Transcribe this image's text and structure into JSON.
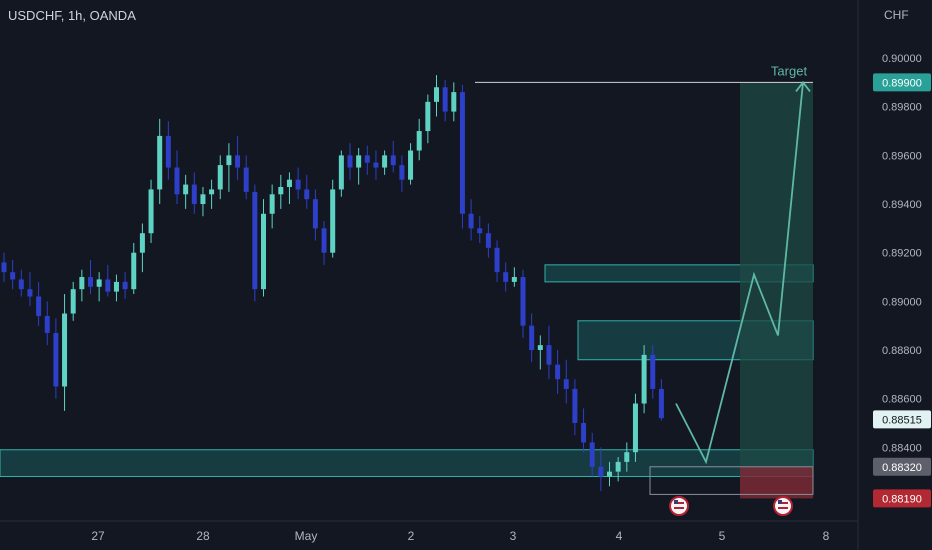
{
  "symbol_title": "USDCHF, 1h, OANDA",
  "currency": "CHF",
  "colors": {
    "background": "#131722",
    "up_candle": "#5fd3c3",
    "down_candle": "#2e3fc9",
    "zone_fill": "#1b6b6b",
    "zone_border": "#2fb3a9",
    "projection": "#5fb8a5",
    "target_box": "#1d4a44",
    "stop_box": "#7a2a35",
    "target_line": "#d1d4dc"
  },
  "chart_data": {
    "type": "candlestick",
    "x_tick_labels": [
      "27",
      "28",
      "May",
      "2",
      "3",
      "4",
      "5",
      "8"
    ],
    "y_tick_labels": [
      "0.90000",
      "0.89800",
      "0.89600",
      "0.89400",
      "0.89200",
      "0.89000",
      "0.88800",
      "0.88600",
      "0.88400"
    ],
    "ylim": [
      0.8813,
      0.9014
    ],
    "price_tags": [
      {
        "label": "0.89900",
        "value": 0.899,
        "kind": "target"
      },
      {
        "label": "0.88515",
        "value": 0.88515,
        "kind": "current"
      },
      {
        "label": "0.88320",
        "value": 0.8832,
        "kind": "entry"
      },
      {
        "label": "0.88190",
        "value": 0.8819,
        "kind": "stop"
      }
    ],
    "target": {
      "label": "Target",
      "value": 0.899
    },
    "zones": [
      {
        "from": 0.8828,
        "to": 0.8839
      },
      {
        "from": 0.8876,
        "to": 0.8892
      },
      {
        "from": 0.8908,
        "to": 0.8915
      }
    ],
    "trade_box": {
      "entry": 0.8832,
      "target": 0.899,
      "stop": 0.8819
    },
    "projection_path": [
      0.8858,
      0.8834,
      0.8911,
      0.8886,
      0.899
    ],
    "ohlc": [
      [
        0.8916,
        0.892,
        0.8908,
        0.8912
      ],
      [
        0.8912,
        0.8917,
        0.8905,
        0.8909
      ],
      [
        0.8909,
        0.8913,
        0.8902,
        0.8905
      ],
      [
        0.8905,
        0.8912,
        0.8898,
        0.8902
      ],
      [
        0.8902,
        0.8908,
        0.889,
        0.8894
      ],
      [
        0.8894,
        0.89,
        0.8882,
        0.8887
      ],
      [
        0.8887,
        0.8893,
        0.886,
        0.8865
      ],
      [
        0.8865,
        0.8903,
        0.8855,
        0.8895
      ],
      [
        0.8895,
        0.8908,
        0.8892,
        0.8905
      ],
      [
        0.8905,
        0.8913,
        0.89,
        0.891
      ],
      [
        0.891,
        0.8917,
        0.8903,
        0.8906
      ],
      [
        0.8906,
        0.8912,
        0.89,
        0.8909
      ],
      [
        0.8909,
        0.8915,
        0.8902,
        0.8904
      ],
      [
        0.8904,
        0.8911,
        0.89,
        0.8908
      ],
      [
        0.8908,
        0.8912,
        0.8901,
        0.8905
      ],
      [
        0.8905,
        0.8924,
        0.8903,
        0.892
      ],
      [
        0.892,
        0.8932,
        0.8912,
        0.8928
      ],
      [
        0.8928,
        0.895,
        0.8924,
        0.8946
      ],
      [
        0.8946,
        0.8975,
        0.894,
        0.8968
      ],
      [
        0.8968,
        0.8974,
        0.895,
        0.8955
      ],
      [
        0.8955,
        0.8962,
        0.894,
        0.8944
      ],
      [
        0.8944,
        0.8952,
        0.8938,
        0.8948
      ],
      [
        0.8948,
        0.8953,
        0.8936,
        0.894
      ],
      [
        0.894,
        0.8947,
        0.8935,
        0.8944
      ],
      [
        0.8944,
        0.895,
        0.8938,
        0.8946
      ],
      [
        0.8946,
        0.896,
        0.8942,
        0.8956
      ],
      [
        0.8956,
        0.8965,
        0.8945,
        0.896
      ],
      [
        0.896,
        0.8968,
        0.895,
        0.8955
      ],
      [
        0.8955,
        0.896,
        0.8942,
        0.8945
      ],
      [
        0.8945,
        0.8948,
        0.89,
        0.8905
      ],
      [
        0.8905,
        0.8942,
        0.8902,
        0.8936
      ],
      [
        0.8936,
        0.8948,
        0.893,
        0.8944
      ],
      [
        0.8944,
        0.8952,
        0.8938,
        0.8947
      ],
      [
        0.8947,
        0.8953,
        0.894,
        0.895
      ],
      [
        0.895,
        0.8955,
        0.8942,
        0.8946
      ],
      [
        0.8946,
        0.8952,
        0.8938,
        0.8942
      ],
      [
        0.8942,
        0.8946,
        0.8925,
        0.893
      ],
      [
        0.893,
        0.8933,
        0.8915,
        0.892
      ],
      [
        0.892,
        0.895,
        0.8918,
        0.8946
      ],
      [
        0.8946,
        0.8962,
        0.8943,
        0.896
      ],
      [
        0.896,
        0.8965,
        0.895,
        0.8955
      ],
      [
        0.8955,
        0.8963,
        0.8948,
        0.896
      ],
      [
        0.896,
        0.8964,
        0.8952,
        0.8957
      ],
      [
        0.8957,
        0.8962,
        0.895,
        0.8955
      ],
      [
        0.8955,
        0.8962,
        0.8952,
        0.896
      ],
      [
        0.896,
        0.8966,
        0.8953,
        0.8956
      ],
      [
        0.8956,
        0.896,
        0.8945,
        0.895
      ],
      [
        0.895,
        0.8965,
        0.8948,
        0.8962
      ],
      [
        0.8962,
        0.8975,
        0.8958,
        0.897
      ],
      [
        0.897,
        0.8985,
        0.8965,
        0.8982
      ],
      [
        0.8982,
        0.8993,
        0.8976,
        0.8988
      ],
      [
        0.8988,
        0.8991,
        0.8974,
        0.8978
      ],
      [
        0.8978,
        0.899,
        0.8974,
        0.8986
      ],
      [
        0.8986,
        0.8989,
        0.893,
        0.8936
      ],
      [
        0.8936,
        0.8942,
        0.8925,
        0.893
      ],
      [
        0.893,
        0.8935,
        0.8924,
        0.8928
      ],
      [
        0.8928,
        0.8932,
        0.8918,
        0.8922
      ],
      [
        0.8922,
        0.8925,
        0.8908,
        0.8912
      ],
      [
        0.8912,
        0.8916,
        0.8904,
        0.8908
      ],
      [
        0.8908,
        0.8914,
        0.8906,
        0.891
      ],
      [
        0.891,
        0.8913,
        0.8885,
        0.889
      ],
      [
        0.889,
        0.8895,
        0.8875,
        0.888
      ],
      [
        0.888,
        0.8886,
        0.8872,
        0.8882
      ],
      [
        0.8882,
        0.889,
        0.8868,
        0.8874
      ],
      [
        0.8874,
        0.888,
        0.8862,
        0.8868
      ],
      [
        0.8868,
        0.8876,
        0.8858,
        0.8864
      ],
      [
        0.8864,
        0.8868,
        0.8845,
        0.885
      ],
      [
        0.885,
        0.8856,
        0.8838,
        0.8842
      ],
      [
        0.8842,
        0.8846,
        0.8828,
        0.8832
      ],
      [
        0.8832,
        0.884,
        0.8822,
        0.8828
      ],
      [
        0.8828,
        0.8834,
        0.8824,
        0.883
      ],
      [
        0.883,
        0.8836,
        0.8826,
        0.8834
      ],
      [
        0.8834,
        0.8842,
        0.883,
        0.8838
      ],
      [
        0.8838,
        0.8862,
        0.8834,
        0.8858
      ],
      [
        0.8858,
        0.8882,
        0.8854,
        0.8878
      ],
      [
        0.8878,
        0.8882,
        0.886,
        0.8864
      ],
      [
        0.8864,
        0.8868,
        0.8851,
        0.8852
      ]
    ]
  }
}
